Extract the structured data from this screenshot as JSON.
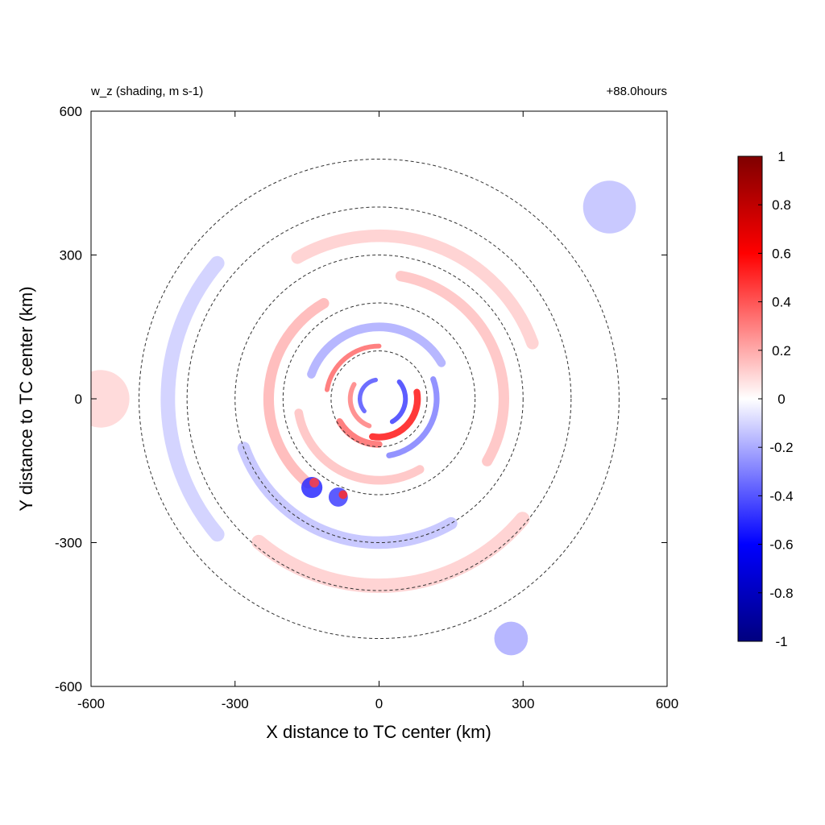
{
  "chart_data": {
    "type": "heatmap",
    "title_left": "w_z (shading, m s-1)",
    "title_right": "+88.0hours",
    "xlabel": "X distance to TC center (km)",
    "ylabel": "Y distance to TC center (km)",
    "xlim": [
      -600,
      600
    ],
    "ylim": [
      -600,
      600
    ],
    "xticks": [
      -600,
      -300,
      0,
      300,
      600
    ],
    "yticks": [
      -600,
      -300,
      0,
      300,
      600
    ],
    "grid": false,
    "colorbar": {
      "min": -1,
      "max": 1,
      "ticks": [
        "1",
        "0.8",
        "0.6",
        "0.4",
        "0.2",
        "0",
        "-0.2",
        "-0.4",
        "-0.6",
        "-0.8",
        "-1"
      ],
      "tick_values": [
        1,
        0.8,
        0.6,
        0.4,
        0.2,
        0,
        -0.2,
        -0.4,
        -0.6,
        -0.8,
        -1
      ],
      "stops": [
        {
          "value": -1,
          "color": "#00007f"
        },
        {
          "value": -0.6,
          "color": "#0000ff"
        },
        {
          "value": 0,
          "color": "#ffffff"
        },
        {
          "value": 0.6,
          "color": "#ff0000"
        },
        {
          "value": 1,
          "color": "#7f0000"
        }
      ]
    },
    "range_rings_km": [
      100,
      200,
      300,
      400,
      500
    ],
    "features": [
      {
        "kind": "arc",
        "r_km": 80,
        "theta_start_deg": -100,
        "theta_end_deg": 10,
        "value": 0.55,
        "width_km": 14
      },
      {
        "kind": "arc",
        "r_km": 95,
        "theta_start_deg": -150,
        "theta_end_deg": -90,
        "value": 0.35,
        "width_km": 14
      },
      {
        "kind": "arc",
        "r_km": 55,
        "theta_start_deg": -60,
        "theta_end_deg": 40,
        "value": -0.45,
        "width_km": 10
      },
      {
        "kind": "arc",
        "r_km": 40,
        "theta_start_deg": 100,
        "theta_end_deg": 220,
        "value": -0.4,
        "width_km": 9
      },
      {
        "kind": "arc",
        "r_km": 60,
        "theta_start_deg": 150,
        "theta_end_deg": 250,
        "value": 0.3,
        "width_km": 10
      },
      {
        "kind": "arc",
        "r_km": 110,
        "theta_start_deg": 90,
        "theta_end_deg": 170,
        "value": 0.35,
        "width_km": 10
      },
      {
        "kind": "arc",
        "r_km": 120,
        "theta_start_deg": -80,
        "theta_end_deg": 20,
        "value": -0.3,
        "width_km": 12
      },
      {
        "kind": "arc",
        "r_km": 150,
        "theta_start_deg": 30,
        "theta_end_deg": 160,
        "value": -0.2,
        "width_km": 18
      },
      {
        "kind": "arc",
        "r_km": 170,
        "theta_start_deg": -170,
        "theta_end_deg": -60,
        "value": 0.15,
        "width_km": 18
      },
      {
        "kind": "arc",
        "r_km": 230,
        "theta_start_deg": 120,
        "theta_end_deg": 230,
        "value": 0.18,
        "width_km": 22
      },
      {
        "kind": "arc",
        "r_km": 260,
        "theta_start_deg": -30,
        "theta_end_deg": 80,
        "value": 0.15,
        "width_km": 22
      },
      {
        "kind": "arc",
        "r_km": 300,
        "theta_start_deg": 200,
        "theta_end_deg": 300,
        "value": -0.15,
        "width_km": 26
      },
      {
        "kind": "arc",
        "r_km": 340,
        "theta_start_deg": 20,
        "theta_end_deg": 120,
        "value": 0.12,
        "width_km": 26
      },
      {
        "kind": "arc",
        "r_km": 390,
        "theta_start_deg": 230,
        "theta_end_deg": 320,
        "value": 0.12,
        "width_km": 30
      },
      {
        "kind": "arc",
        "r_km": 440,
        "theta_start_deg": 140,
        "theta_end_deg": 220,
        "value": -0.12,
        "width_km": 30
      },
      {
        "kind": "blob",
        "x_km": -140,
        "y_km": -185,
        "r_km": 22,
        "value": -0.5
      },
      {
        "kind": "blob",
        "x_km": -135,
        "y_km": -175,
        "r_km": 10,
        "value": 0.45
      },
      {
        "kind": "blob",
        "x_km": -85,
        "y_km": -205,
        "r_km": 20,
        "value": -0.45
      },
      {
        "kind": "blob",
        "x_km": -75,
        "y_km": -200,
        "r_km": 9,
        "value": 0.5
      },
      {
        "kind": "blob",
        "x_km": 275,
        "y_km": -500,
        "r_km": 35,
        "value": -0.2
      },
      {
        "kind": "blob",
        "x_km": 480,
        "y_km": 400,
        "r_km": 55,
        "value": -0.15
      },
      {
        "kind": "blob",
        "x_km": -580,
        "y_km": 0,
        "r_km": 60,
        "value": 0.1
      }
    ]
  }
}
